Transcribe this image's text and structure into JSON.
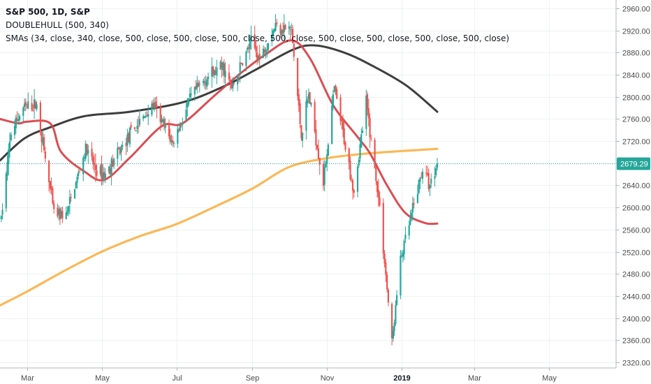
{
  "legend": {
    "symbol_line": "S&P 500, 1D, S&P",
    "indicator_line": "DOUBLEHULL (500, 340)",
    "sma_line": "SMAs (34, close, 340, close, 500, close, 500, close, 500, close, 500, close, 500, close, 500, close, 500, close, 500, close)"
  },
  "last_price_label": "2679.29",
  "colors": {
    "up": "#26a69a",
    "down": "#ef5350",
    "ma_short": "#d9434a",
    "ma_long": "#333333",
    "ma_500": "#fbb44d",
    "price_line": "#26a69a",
    "grid": "#eef0f3"
  },
  "chart_data": {
    "type": "candlestick",
    "ylim": [
      2310,
      2975
    ],
    "y_ticks": [
      2320,
      2360,
      2400,
      2440,
      2480,
      2520,
      2560,
      2600,
      2640,
      2680,
      2720,
      2760,
      2800,
      2840,
      2880,
      2920,
      2960
    ],
    "x_range": [
      "2018-02-07",
      "2019-06-25"
    ],
    "x_ticks": [
      {
        "date": "2018-03-01",
        "label": "Mar"
      },
      {
        "date": "2018-05-01",
        "label": "May"
      },
      {
        "date": "2018-07-01",
        "label": "Jul"
      },
      {
        "date": "2018-09-01",
        "label": "Sep"
      },
      {
        "date": "2018-11-01",
        "label": "Nov"
      },
      {
        "date": "2019-01-01",
        "label": "2019"
      },
      {
        "date": "2019-03-01",
        "label": "Mar"
      },
      {
        "date": "2019-05-01",
        "label": "May"
      }
    ],
    "last_price": 2679.29,
    "price_anchors": [
      [
        "2018-02-08",
        2580
      ],
      [
        "2018-02-16",
        2735
      ],
      [
        "2018-02-26",
        2780
      ],
      [
        "2018-03-09",
        2785
      ],
      [
        "2018-03-23",
        2590
      ],
      [
        "2018-04-02",
        2585
      ],
      [
        "2018-04-18",
        2705
      ],
      [
        "2018-04-27",
        2665
      ],
      [
        "2018-05-04",
        2660
      ],
      [
        "2018-05-22",
        2725
      ],
      [
        "2018-06-12",
        2785
      ],
      [
        "2018-06-28",
        2715
      ],
      [
        "2018-07-13",
        2800
      ],
      [
        "2018-07-26",
        2835
      ],
      [
        "2018-08-08",
        2855
      ],
      [
        "2018-08-15",
        2815
      ],
      [
        "2018-08-31",
        2900
      ],
      [
        "2018-09-07",
        2870
      ],
      [
        "2018-09-20",
        2930
      ],
      [
        "2018-10-03",
        2920
      ],
      [
        "2018-10-11",
        2730
      ],
      [
        "2018-10-17",
        2805
      ],
      [
        "2018-10-29",
        2645
      ],
      [
        "2018-11-07",
        2815
      ],
      [
        "2018-11-23",
        2630
      ],
      [
        "2018-12-03",
        2790
      ],
      [
        "2018-12-14",
        2600
      ],
      [
        "2018-12-24",
        2355
      ],
      [
        "2018-12-31",
        2505
      ],
      [
        "2019-01-10",
        2595
      ],
      [
        "2019-01-18",
        2670
      ],
      [
        "2019-01-24",
        2640
      ],
      [
        "2019-01-30",
        2680
      ]
    ],
    "series": [
      {
        "type": "line",
        "points": [
          [
            "2018-02-07",
            2760
          ],
          [
            "2018-02-22",
            2752
          ],
          [
            "2018-03-01",
            2755
          ],
          [
            "2018-03-20",
            2752
          ],
          [
            "2018-03-29",
            2700
          ],
          [
            "2018-04-17",
            2665
          ],
          [
            "2018-05-03",
            2650
          ],
          [
            "2018-05-24",
            2690
          ],
          [
            "2018-06-19",
            2747
          ],
          [
            "2018-07-06",
            2752
          ],
          [
            "2018-07-31",
            2800
          ],
          [
            "2018-08-21",
            2840
          ],
          [
            "2018-09-12",
            2877
          ],
          [
            "2018-10-03",
            2902
          ],
          [
            "2018-10-18",
            2870
          ],
          [
            "2018-11-06",
            2785
          ],
          [
            "2018-11-25",
            2730
          ],
          [
            "2018-12-06",
            2698
          ],
          [
            "2018-12-20",
            2640
          ],
          [
            "2019-01-04",
            2590
          ],
          [
            "2019-01-20",
            2572
          ],
          [
            "2019-01-30",
            2571
          ]
        ]
      },
      {
        "type": "line",
        "points": [
          [
            "2018-02-07",
            2685
          ],
          [
            "2018-02-27",
            2725
          ],
          [
            "2018-03-20",
            2745
          ],
          [
            "2018-04-17",
            2765
          ],
          [
            "2018-05-24",
            2773
          ],
          [
            "2018-07-06",
            2790
          ],
          [
            "2018-08-08",
            2818
          ],
          [
            "2018-09-03",
            2848
          ],
          [
            "2018-10-04",
            2885
          ],
          [
            "2018-10-22",
            2893
          ],
          [
            "2018-11-15",
            2880
          ],
          [
            "2018-12-09",
            2855
          ],
          [
            "2019-01-05",
            2820
          ],
          [
            "2019-01-30",
            2773
          ]
        ]
      },
      {
        "type": "line",
        "points": [
          [
            "2018-02-07",
            2423
          ],
          [
            "2018-03-01",
            2448
          ],
          [
            "2018-04-01",
            2486
          ],
          [
            "2018-05-01",
            2520
          ],
          [
            "2018-06-01",
            2548
          ],
          [
            "2018-07-01",
            2570
          ],
          [
            "2018-08-01",
            2601
          ],
          [
            "2018-09-01",
            2634
          ],
          [
            "2018-10-01",
            2673
          ],
          [
            "2018-11-01",
            2689
          ],
          [
            "2018-12-01",
            2697
          ],
          [
            "2019-01-01",
            2702
          ],
          [
            "2019-01-30",
            2706
          ]
        ]
      }
    ]
  }
}
